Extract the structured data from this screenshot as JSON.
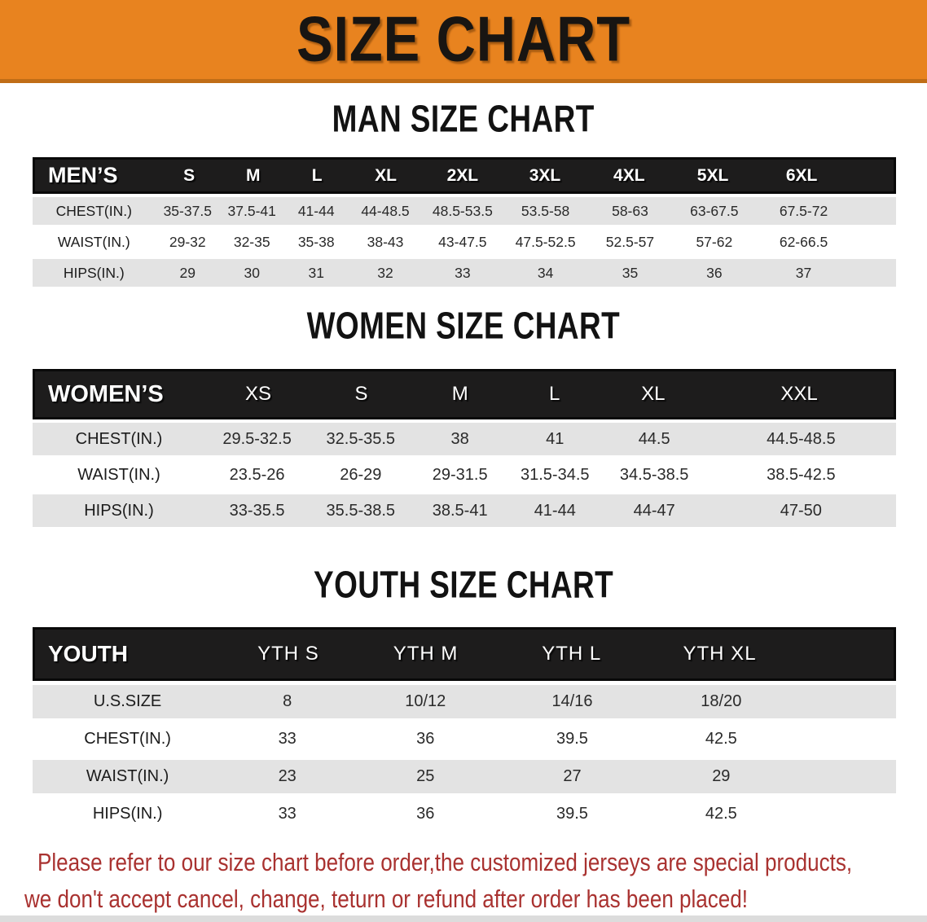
{
  "banner": {
    "title": "SIZE CHART"
  },
  "colors": {
    "banner_orange": "#E8831F",
    "header_black": "#1d1c1c",
    "row_gray": "#E3E3E3",
    "footer_red": "#A93230"
  },
  "men": {
    "heading": "MAN SIZE CHART",
    "table": {
      "header": [
        "MEN’S",
        "S",
        "M",
        "L",
        "XL",
        "2XL",
        "3XL",
        "4XL",
        "5XL",
        "6XL"
      ],
      "rows": [
        [
          "CHEST(IN.)",
          "35-37.5",
          "37.5-41",
          "41-44",
          "44-48.5",
          "48.5-53.5",
          "53.5-58",
          "58-63",
          "63-67.5",
          "67.5-72"
        ],
        [
          "WAIST(IN.)",
          "29-32",
          "32-35",
          "35-38",
          "38-43",
          "43-47.5",
          "47.5-52.5",
          "52.5-57",
          "57-62",
          "62-66.5"
        ],
        [
          "HIPS(IN.)",
          "29",
          "30",
          "31",
          "32",
          "33",
          "34",
          "35",
          "36",
          "37"
        ]
      ]
    }
  },
  "women": {
    "heading": "WOMEN SIZE CHART",
    "table": {
      "header": [
        "WOMEN’S",
        "XS",
        "S",
        "M",
        "L",
        "XL",
        "XXL"
      ],
      "rows": [
        [
          "CHEST(IN.)",
          "29.5-32.5",
          "32.5-35.5",
          "38",
          "41",
          "44.5",
          "44.5-48.5"
        ],
        [
          "WAIST(IN.)",
          "23.5-26",
          "26-29",
          "29-31.5",
          "31.5-34.5",
          "34.5-38.5",
          "38.5-42.5"
        ],
        [
          "HIPS(IN.)",
          "33-35.5",
          "35.5-38.5",
          "38.5-41",
          "41-44",
          "44-47",
          "47-50"
        ]
      ]
    }
  },
  "youth": {
    "heading": "YOUTH SIZE CHART",
    "table": {
      "header": [
        "YOUTH",
        "YTH S",
        "YTH M",
        "YTH L",
        "YTH XL"
      ],
      "rows": [
        [
          "U.S.SIZE",
          "8",
          "10/12",
          "14/16",
          "18/20"
        ],
        [
          "CHEST(IN.)",
          "33",
          "36",
          "39.5",
          "42.5"
        ],
        [
          "WAIST(IN.)",
          "23",
          "25",
          "27",
          "29"
        ],
        [
          "HIPS(IN.)",
          "33",
          "36",
          "39.5",
          "42.5"
        ]
      ]
    }
  },
  "footer": {
    "line1": "Please refer to our size chart before order,the customized jerseys are special products,",
    "line2": "we don't accept cancel, change, teturn or refund after order has been placed!"
  }
}
